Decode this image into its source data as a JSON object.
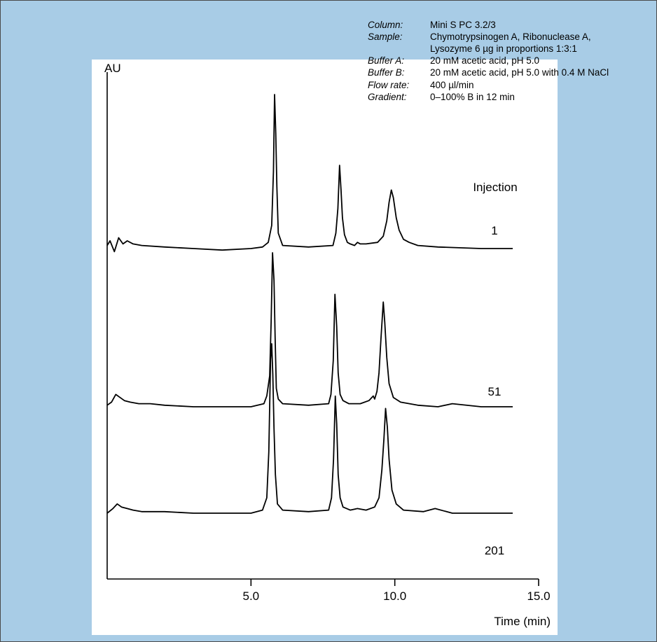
{
  "chart_data": {
    "type": "line",
    "title": "",
    "xlabel": "Time (min)",
    "ylabel": "AU",
    "xlim": [
      0,
      15
    ],
    "x_ticks": [
      "5.0",
      "10.0",
      "15.0"
    ],
    "x_tick_values": [
      5,
      10,
      15
    ],
    "legend_title": "Injection",
    "grid": false,
    "conditions": [
      {
        "key": "Column:",
        "value": "Mini S PC 3.2/3"
      },
      {
        "key": "Sample:",
        "value": "Chymotrypsinogen A, Ribonuclease A,"
      },
      {
        "key": "",
        "value": "Lysozyme 6 µg in proportions 1:3:1"
      },
      {
        "key": "Buffer A:",
        "value": "20 mM acetic acid, pH 5.0"
      },
      {
        "key": "Buffer B:",
        "value": "20 mM acetic acid, pH 5.0 with 0.4 M NaCl"
      },
      {
        "key": "Flow rate:",
        "value": "400 µl/min"
      },
      {
        "key": "Gradient:",
        "value": "0–100% B in 12 min"
      }
    ],
    "series": [
      {
        "name": "1",
        "baseline_offset": 2.0,
        "x": [
          0,
          0.1,
          0.25,
          0.4,
          0.55,
          0.7,
          0.9,
          1.2,
          2,
          3,
          4,
          5,
          5.4,
          5.6,
          5.72,
          5.78,
          5.82,
          5.86,
          5.9,
          5.95,
          6.1,
          7,
          7.85,
          7.95,
          8.02,
          8.08,
          8.13,
          8.18,
          8.25,
          8.35,
          8.45,
          8.6,
          8.7,
          8.8,
          9.0,
          9.4,
          9.6,
          9.72,
          9.8,
          9.88,
          9.95,
          10.05,
          10.15,
          10.3,
          10.5,
          10.8,
          11.5,
          13,
          14.1
        ],
        "y": [
          0.02,
          0.05,
          -0.02,
          0.07,
          0.03,
          0.05,
          0.03,
          0.02,
          0.01,
          0.0,
          -0.01,
          0.0,
          0.01,
          0.04,
          0.15,
          0.5,
          1.0,
          0.75,
          0.4,
          0.1,
          0.02,
          0.01,
          0.02,
          0.1,
          0.26,
          0.54,
          0.38,
          0.2,
          0.09,
          0.04,
          0.03,
          0.02,
          0.04,
          0.03,
          0.03,
          0.04,
          0.08,
          0.18,
          0.3,
          0.38,
          0.33,
          0.2,
          0.12,
          0.06,
          0.04,
          0.02,
          0.01,
          0.0,
          0.0
        ]
      },
      {
        "name": "51",
        "baseline_offset": 1.0,
        "x": [
          0,
          0.15,
          0.3,
          0.45,
          0.6,
          0.8,
          1.1,
          1.5,
          2,
          3,
          4,
          5,
          5.45,
          5.55,
          5.65,
          5.7,
          5.75,
          5.8,
          5.84,
          5.88,
          5.95,
          6.1,
          7,
          7.7,
          7.78,
          7.86,
          7.92,
          7.98,
          8.03,
          8.1,
          8.2,
          8.4,
          8.8,
          9.1,
          9.25,
          9.3,
          9.38,
          9.45,
          9.52,
          9.6,
          9.65,
          9.72,
          9.8,
          9.95,
          10.2,
          10.8,
          11.5,
          12,
          13,
          14.1
        ],
        "y": [
          0.01,
          0.03,
          0.08,
          0.06,
          0.04,
          0.03,
          0.02,
          0.02,
          0.01,
          0.0,
          0.0,
          0.0,
          0.02,
          0.07,
          0.2,
          0.55,
          1.0,
          0.82,
          0.45,
          0.12,
          0.05,
          0.02,
          0.01,
          0.02,
          0.08,
          0.3,
          0.73,
          0.52,
          0.22,
          0.08,
          0.04,
          0.02,
          0.02,
          0.04,
          0.07,
          0.05,
          0.1,
          0.22,
          0.45,
          0.68,
          0.55,
          0.32,
          0.15,
          0.06,
          0.03,
          0.01,
          0.0,
          0.02,
          0.0,
          0.0
        ]
      },
      {
        "name": "201",
        "baseline_offset": 0.0,
        "x": [
          0,
          0.2,
          0.35,
          0.5,
          0.7,
          0.9,
          1.2,
          2,
          3,
          4,
          5,
          5.4,
          5.55,
          5.62,
          5.68,
          5.72,
          5.76,
          5.8,
          5.85,
          5.92,
          6.1,
          7,
          7.7,
          7.8,
          7.87,
          7.93,
          7.98,
          8.03,
          8.1,
          8.2,
          8.45,
          8.7,
          9.0,
          9.3,
          9.45,
          9.55,
          9.62,
          9.68,
          9.74,
          9.8,
          9.9,
          10.05,
          10.3,
          11,
          11.4,
          12,
          13,
          14.1
        ],
        "y": [
          0.0,
          0.03,
          0.06,
          0.04,
          0.03,
          0.02,
          0.01,
          0.01,
          0.0,
          0.0,
          0.0,
          0.02,
          0.1,
          0.4,
          1.0,
          1.1,
          0.9,
          0.55,
          0.25,
          0.06,
          0.02,
          0.01,
          0.02,
          0.1,
          0.35,
          0.76,
          0.58,
          0.25,
          0.1,
          0.04,
          0.02,
          0.03,
          0.02,
          0.04,
          0.1,
          0.28,
          0.48,
          0.68,
          0.56,
          0.35,
          0.15,
          0.06,
          0.02,
          0.01,
          0.03,
          0.0,
          0.0,
          0.0
        ]
      }
    ]
  }
}
